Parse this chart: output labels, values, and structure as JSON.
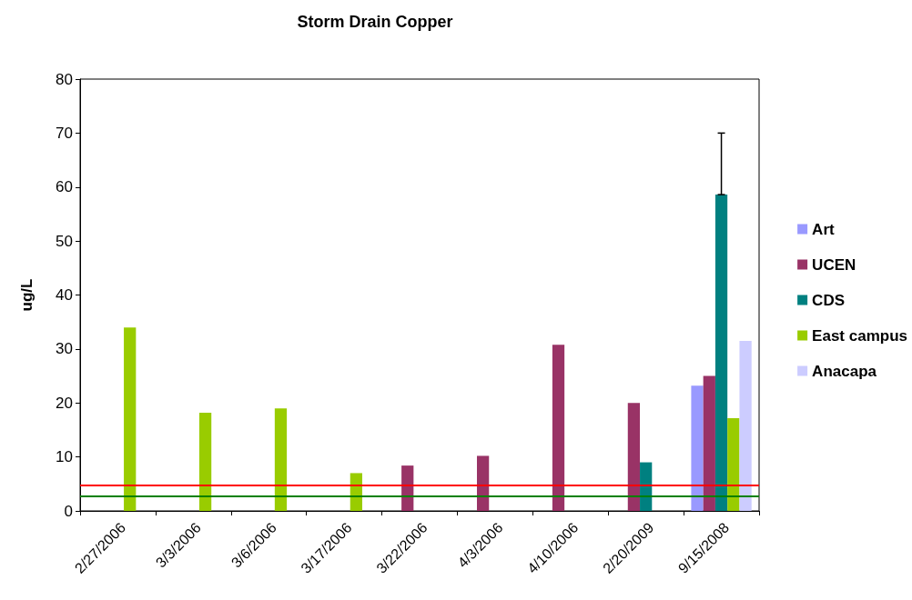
{
  "chart_data": {
    "type": "bar",
    "title": "Storm Drain Copper",
    "ylabel": "ug/L",
    "categories": [
      "2/27/2006",
      "3/3/2006",
      "3/6/2006",
      "3/17/2006",
      "3/22/2006",
      "4/3/2006",
      "4/10/2006",
      "2/20/2009",
      "9/15/2008"
    ],
    "series": [
      {
        "name": "Art",
        "color": "#9999ff",
        "values": [
          null,
          null,
          null,
          null,
          null,
          null,
          null,
          null,
          23.2
        ]
      },
      {
        "name": "UCEN",
        "color": "#993366",
        "values": [
          null,
          null,
          null,
          null,
          8.4,
          10.2,
          30.8,
          20,
          25
        ]
      },
      {
        "name": "CDS",
        "color": "#008080",
        "values": [
          null,
          null,
          null,
          null,
          null,
          null,
          null,
          9,
          58.6
        ],
        "errors": [
          null,
          null,
          null,
          null,
          null,
          null,
          null,
          null,
          [
            58.6,
            70
          ]
        ]
      },
      {
        "name": "East campus",
        "color": "#99cc00",
        "values": [
          34,
          18.2,
          19,
          7,
          null,
          null,
          null,
          null,
          17.2
        ]
      },
      {
        "name": "Anacapa",
        "color": "#ccccff",
        "values": [
          null,
          null,
          null,
          null,
          null,
          null,
          null,
          null,
          31.5
        ]
      }
    ],
    "ylim": [
      0,
      80
    ],
    "yticks": [
      0,
      10,
      20,
      30,
      40,
      50,
      60,
      70,
      80
    ],
    "ref_lines": [
      {
        "axis": "y",
        "value": 4.8,
        "color": "#ff0000"
      },
      {
        "axis": "y",
        "value": 2.8,
        "color": "#008000"
      }
    ],
    "legend": "right",
    "grid": false
  }
}
